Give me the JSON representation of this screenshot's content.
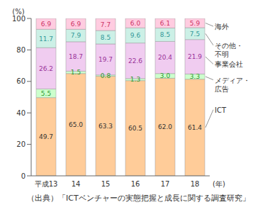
{
  "chart_data": {
    "type": "bar",
    "stacked": true,
    "data_labels": true,
    "categories": [
      "平成13",
      "14",
      "15",
      "16",
      "17",
      "18"
    ],
    "x_label": "(年)",
    "y_label": "(%)",
    "ylim": [
      0,
      100
    ],
    "yticks": [
      0,
      20,
      40,
      60,
      80,
      100
    ],
    "annotation": "（出典）「ICTベンチャーの実態把握と成長に関する調査研究」",
    "series": [
      {
        "name": "ICT",
        "color": "#ffcc99",
        "values": [
          49.7,
          65.0,
          63.3,
          60.5,
          62.0,
          61.4
        ],
        "value_labels": [
          "49.7",
          "65.0",
          "63.3",
          "60.5",
          "62.0",
          "61.4"
        ]
      },
      {
        "name": "メディア・広告",
        "color": "#ccffcc",
        "values": [
          5.5,
          1.5,
          0.8,
          1.3,
          3.0,
          3.3
        ],
        "value_labels": [
          "5.5",
          "1.5",
          "0.8",
          "1.3",
          "3.0",
          "3.3"
        ]
      },
      {
        "name": "事業会社",
        "color": "#f0ccf0",
        "values": [
          26.2,
          18.7,
          19.7,
          22.6,
          20.4,
          21.9
        ],
        "value_labels": [
          "26.2",
          "18.7",
          "19.7",
          "22.6",
          "20.4",
          "21.9"
        ]
      },
      {
        "name": "その他・不明",
        "color": "#ccf0e6",
        "values": [
          11.7,
          7.9,
          8.5,
          9.6,
          8.5,
          7.5
        ],
        "value_labels": [
          "11.7",
          "7.9",
          "8.5",
          "9.6",
          "8.5",
          "7.5"
        ]
      },
      {
        "name": "海外",
        "color": "#ffcce0",
        "values": [
          6.9,
          6.9,
          7.7,
          6.0,
          6.1,
          5.9
        ],
        "value_labels": [
          "6.9",
          "6.9",
          "7.7",
          "6.0",
          "6.1",
          "5.9"
        ]
      }
    ]
  }
}
